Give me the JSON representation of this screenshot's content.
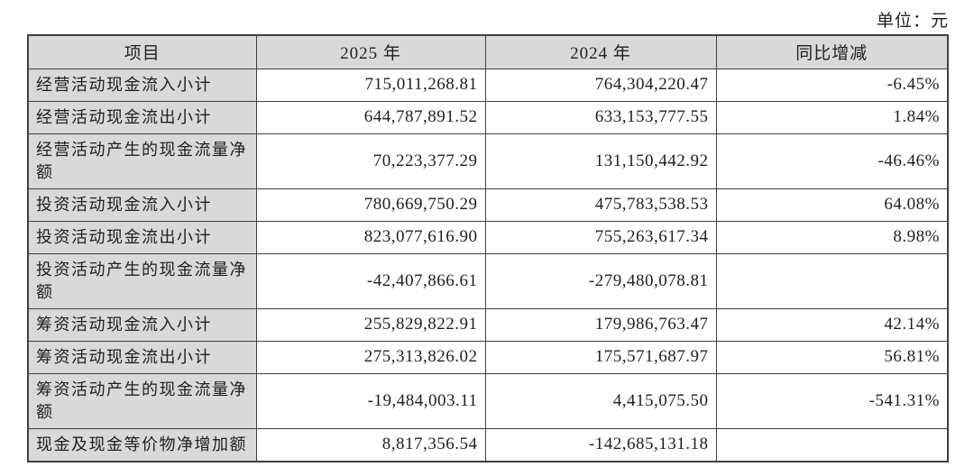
{
  "unit_label": "单位：元",
  "colors": {
    "header_bg": "#d9d9d9",
    "label_col_bg": "#d9d9d9",
    "border": "#404040",
    "text": "#1f1f1f",
    "data_cell_bg": "#ffffff"
  },
  "table": {
    "headers": [
      "项目",
      "2025 年",
      "2024 年",
      "同比增减"
    ],
    "rows": [
      {
        "label": "经营活动现金流入小计",
        "y2025": "715,011,268.81",
        "y2024": "764,304,220.47",
        "yoy": "-6.45%"
      },
      {
        "label": "经营活动现金流出小计",
        "y2025": "644,787,891.52",
        "y2024": "633,153,777.55",
        "yoy": "1.84%"
      },
      {
        "label": "经营活动产生的现金流量净额",
        "y2025": "70,223,377.29",
        "y2024": "131,150,442.92",
        "yoy": "-46.46%"
      },
      {
        "label": "投资活动现金流入小计",
        "y2025": "780,669,750.29",
        "y2024": "475,783,538.53",
        "yoy": "64.08%"
      },
      {
        "label": "投资活动现金流出小计",
        "y2025": "823,077,616.90",
        "y2024": "755,263,617.34",
        "yoy": "8.98%"
      },
      {
        "label": "投资活动产生的现金流量净额",
        "y2025": "-42,407,866.61",
        "y2024": "-279,480,078.81",
        "yoy": ""
      },
      {
        "label": "筹资活动现金流入小计",
        "y2025": "255,829,822.91",
        "y2024": "179,986,763.47",
        "yoy": "42.14%"
      },
      {
        "label": "筹资活动现金流出小计",
        "y2025": "275,313,826.02",
        "y2024": "175,571,687.97",
        "yoy": "56.81%"
      },
      {
        "label": "筹资活动产生的现金流量净额",
        "y2025": "-19,484,003.11",
        "y2024": "4,415,075.50",
        "yoy": "-541.31%"
      },
      {
        "label": "现金及现金等价物净增加额",
        "y2025": "8,817,356.54",
        "y2024": "-142,685,131.18",
        "yoy": ""
      }
    ]
  }
}
